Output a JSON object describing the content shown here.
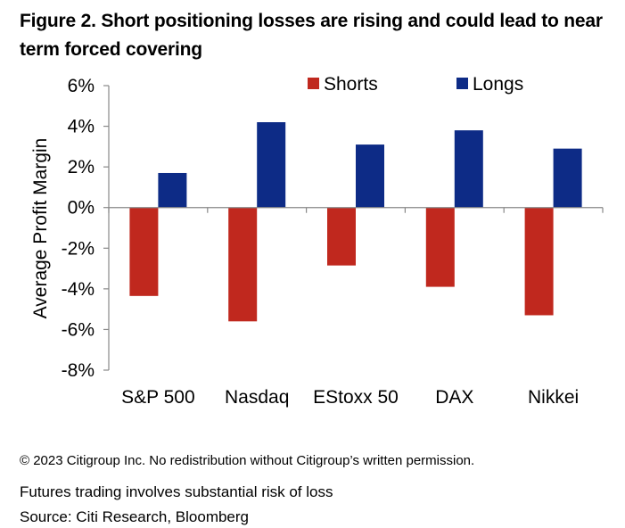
{
  "title": "Figure 2. Short positioning losses are rising and could lead to near term forced covering",
  "colors": {
    "shorts": "#C0281E",
    "longs": "#0D2B86",
    "axis": "#888888"
  },
  "chart_data": {
    "type": "bar",
    "categories": [
      "S&P 500",
      "Nasdaq",
      "EStoxx 50",
      "DAX",
      "Nikkei"
    ],
    "series": [
      {
        "name": "Shorts",
        "values": [
          -4.35,
          -5.6,
          -2.85,
          -3.9,
          -5.3
        ]
      },
      {
        "name": "Longs",
        "values": [
          1.7,
          4.2,
          3.1,
          3.8,
          2.9
        ]
      }
    ],
    "ylabel": "Average Profit Margin",
    "xlabel": "",
    "ylim": [
      -8,
      6
    ],
    "yticks": [
      6,
      4,
      2,
      0,
      -2,
      -4,
      -6,
      -8
    ],
    "ytick_labels": [
      "6%",
      "4%",
      "2%",
      "0%",
      "-2%",
      "-4%",
      "-6%",
      "-8%"
    ],
    "legend_position": "top-right",
    "grid": false
  },
  "footer": {
    "copyright": "© 2023 Citigroup Inc. No redistribution without Citigroup’s written permission.",
    "risk_note": "Futures trading involves substantial risk of loss",
    "source": "Source: Citi Research, Bloomberg"
  }
}
